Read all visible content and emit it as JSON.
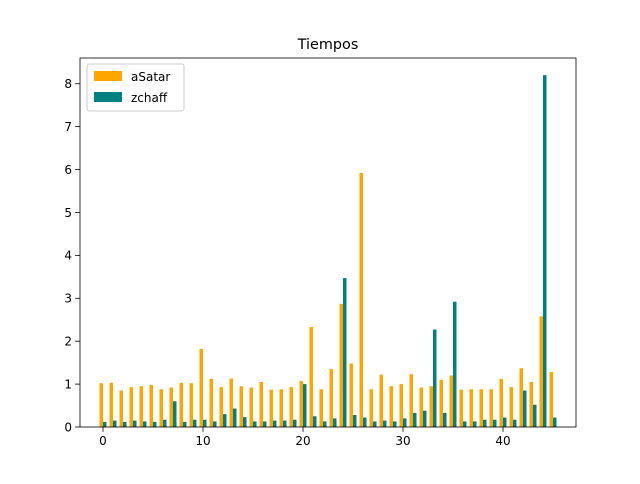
{
  "chart_data": {
    "type": "bar",
    "title": "Tiempos",
    "xlabel": "",
    "ylabel": "",
    "x": [
      0,
      1,
      2,
      3,
      4,
      5,
      6,
      7,
      8,
      9,
      10,
      11,
      12,
      13,
      14,
      15,
      16,
      17,
      18,
      19,
      20,
      21,
      22,
      23,
      24,
      25,
      26,
      27,
      28,
      29,
      30,
      31,
      32,
      33,
      34,
      35,
      36,
      37,
      38,
      39,
      40,
      41,
      42,
      43,
      44,
      45
    ],
    "xlim": [
      -2.3,
      47.3
    ],
    "ylim": [
      0,
      8.6
    ],
    "xticks": [
      0,
      10,
      20,
      30,
      40
    ],
    "yticks": [
      0,
      1,
      2,
      3,
      4,
      5,
      6,
      7,
      8
    ],
    "grid": false,
    "legend_position": "top-left",
    "series": [
      {
        "name": "aSatar",
        "color": "#ffa500",
        "values": [
          1.02,
          1.03,
          0.85,
          0.93,
          0.95,
          0.98,
          0.88,
          0.92,
          1.03,
          1.02,
          1.82,
          1.12,
          0.93,
          1.13,
          0.95,
          0.92,
          1.05,
          0.87,
          0.88,
          0.93,
          1.07,
          2.33,
          0.88,
          1.35,
          2.87,
          1.48,
          5.92,
          0.88,
          1.22,
          0.95,
          1.0,
          1.23,
          0.92,
          0.95,
          1.1,
          1.2,
          0.87,
          0.88,
          0.88,
          0.88,
          1.12,
          0.93,
          1.37,
          1.05,
          2.58,
          1.28
        ]
      },
      {
        "name": "zchaff",
        "color": "#008080",
        "values": [
          0.12,
          0.15,
          0.12,
          0.15,
          0.13,
          0.12,
          0.17,
          0.6,
          0.12,
          0.17,
          0.17,
          0.13,
          0.3,
          0.43,
          0.23,
          0.13,
          0.13,
          0.15,
          0.15,
          0.17,
          1.0,
          0.25,
          0.13,
          0.2,
          3.47,
          0.28,
          0.22,
          0.13,
          0.15,
          0.13,
          0.2,
          0.33,
          0.38,
          2.27,
          0.33,
          2.92,
          0.13,
          0.13,
          0.17,
          0.17,
          0.22,
          0.17,
          0.85,
          0.52,
          8.2,
          0.22
        ]
      }
    ]
  }
}
